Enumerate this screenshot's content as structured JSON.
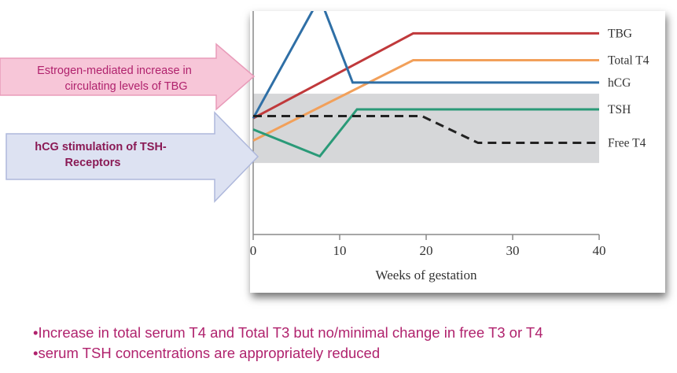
{
  "chart_data": {
    "type": "line",
    "xlabel": "Weeks of gestation",
    "ylabel": "",
    "xlim": [
      0,
      40
    ],
    "ylim": [
      0,
      100
    ],
    "x_ticks": [
      0,
      10,
      20,
      30,
      40
    ],
    "grid": false,
    "legend": "right, labels at line ends",
    "normal_range_band": [
      32,
      63
    ],
    "series": [
      {
        "name": "TBG",
        "color": "#c0393b",
        "dash": "solid",
        "points": [
          [
            0,
            52
          ],
          [
            18.5,
            90
          ],
          [
            40,
            90
          ]
        ]
      },
      {
        "name": "Total T4",
        "color": "#f2a05a",
        "dash": "solid",
        "points": [
          [
            0,
            42
          ],
          [
            18.5,
            78
          ],
          [
            40,
            78
          ]
        ]
      },
      {
        "name": "hCG",
        "color": "#2f6fa6",
        "dash": "solid",
        "points": [
          [
            0,
            52
          ],
          [
            7.7,
            106
          ],
          [
            11.5,
            68
          ],
          [
            40,
            68
          ]
        ]
      },
      {
        "name": "TSH",
        "color": "#2a9a78",
        "dash": "solid",
        "points": [
          [
            0,
            47
          ],
          [
            7.7,
            35
          ],
          [
            12,
            56
          ],
          [
            40,
            56
          ]
        ]
      },
      {
        "name": "Free T4",
        "color": "#222222",
        "dash": "dashed",
        "points": [
          [
            0,
            53
          ],
          [
            19.5,
            53
          ],
          [
            26,
            41
          ],
          [
            40,
            41
          ]
        ]
      }
    ]
  },
  "callouts": {
    "estrogen": {
      "line1": "Estrogen-mediated increase in",
      "line2": "circulating levels of TBG"
    },
    "hcg": {
      "line1": "hCG stimulation of TSH-",
      "line2": "Receptors"
    }
  },
  "bullets": [
    "•Increase in total serum T4 and Total T3 but no/minimal change in free T3 or T4",
    "•serum TSH concentrations are appropriately reduced"
  ],
  "colors": {
    "band": "#d6d7d9",
    "axis": "#888888",
    "estrogen_arrow_fill": "#f7c6d8",
    "estrogen_arrow_stroke": "#e89bb9",
    "hcg_arrow_fill": "#dde2f2",
    "hcg_arrow_stroke": "#aeb8dc",
    "bullet_text": "#b0226d"
  }
}
